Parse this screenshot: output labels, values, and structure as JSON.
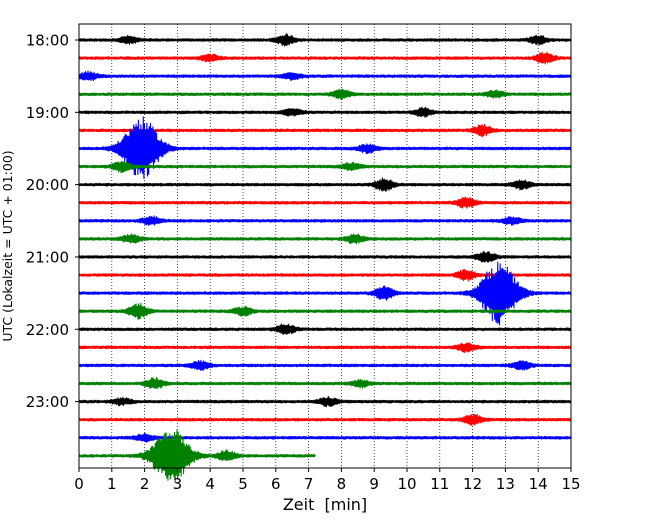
{
  "chart_data": {
    "type": "line",
    "subtype": "helicorder-seismogram",
    "xlabel": "Zeit  [min]",
    "ylabel": "UTC (Lokalzeit = UTC + 01:00)",
    "xlim": [
      0,
      15
    ],
    "x_ticks": [
      "0",
      "1",
      "2",
      "3",
      "4",
      "5",
      "6",
      "7",
      "8",
      "9",
      "10",
      "11",
      "12",
      "13",
      "14",
      "15"
    ],
    "y_tick_labels": [
      "18:00",
      "19:00",
      "20:00",
      "21:00",
      "22:00",
      "23:00"
    ],
    "minutes_per_line": 15,
    "grid": "vertical dotted at each minute",
    "trace_colors": [
      "#000000",
      "#ff0000",
      "#0000ff",
      "#008000"
    ],
    "trace_start_utc": "18:00",
    "last_trace_end_minute": 7.2,
    "traces": [
      {
        "utc": "18:00",
        "color": "#000000",
        "bursts": [
          {
            "x": 1.5,
            "amp": 0.4
          },
          {
            "x": 6.3,
            "amp": 0.6
          },
          {
            "x": 14.0,
            "amp": 0.5
          }
        ]
      },
      {
        "utc": "18:15",
        "color": "#ff0000",
        "bursts": [
          {
            "x": 4.0,
            "amp": 0.4
          },
          {
            "x": 14.2,
            "amp": 0.6
          }
        ]
      },
      {
        "utc": "18:30",
        "color": "#0000ff",
        "bursts": [
          {
            "x": 0.3,
            "amp": 0.5
          },
          {
            "x": 6.5,
            "amp": 0.4
          }
        ]
      },
      {
        "utc": "18:45",
        "color": "#008000",
        "bursts": [
          {
            "x": 8.0,
            "amp": 0.5
          },
          {
            "x": 12.7,
            "amp": 0.4
          }
        ]
      },
      {
        "utc": "19:00",
        "color": "#000000",
        "bursts": [
          {
            "x": 6.5,
            "amp": 0.4
          },
          {
            "x": 10.5,
            "amp": 0.5
          }
        ]
      },
      {
        "utc": "19:15",
        "color": "#ff0000",
        "bursts": [
          {
            "x": 12.3,
            "amp": 0.6
          }
        ]
      },
      {
        "utc": "19:30",
        "color": "#0000ff",
        "bursts": [
          {
            "x": 1.9,
            "amp": 3.8
          },
          {
            "x": 8.8,
            "amp": 0.5
          }
        ]
      },
      {
        "utc": "19:45",
        "color": "#008000",
        "bursts": [
          {
            "x": 1.3,
            "amp": 0.6
          },
          {
            "x": 8.3,
            "amp": 0.4
          }
        ]
      },
      {
        "utc": "20:00",
        "color": "#000000",
        "bursts": [
          {
            "x": 9.3,
            "amp": 0.7
          },
          {
            "x": 13.5,
            "amp": 0.5
          }
        ]
      },
      {
        "utc": "20:15",
        "color": "#ff0000",
        "bursts": [
          {
            "x": 11.8,
            "amp": 0.6
          }
        ]
      },
      {
        "utc": "20:30",
        "color": "#0000ff",
        "bursts": [
          {
            "x": 2.2,
            "amp": 0.5
          },
          {
            "x": 13.2,
            "amp": 0.4
          }
        ]
      },
      {
        "utc": "20:45",
        "color": "#008000",
        "bursts": [
          {
            "x": 1.6,
            "amp": 0.5
          },
          {
            "x": 8.4,
            "amp": 0.5
          }
        ]
      },
      {
        "utc": "21:00",
        "color": "#000000",
        "bursts": [
          {
            "x": 12.4,
            "amp": 0.6
          }
        ]
      },
      {
        "utc": "21:15",
        "color": "#ff0000",
        "bursts": [
          {
            "x": 11.8,
            "amp": 0.6
          }
        ]
      },
      {
        "utc": "21:30",
        "color": "#0000ff",
        "bursts": [
          {
            "x": 9.3,
            "amp": 0.8
          },
          {
            "x": 12.8,
            "amp": 3.8
          }
        ]
      },
      {
        "utc": "21:45",
        "color": "#008000",
        "bursts": [
          {
            "x": 1.8,
            "amp": 0.9
          },
          {
            "x": 5.0,
            "amp": 0.5
          }
        ]
      },
      {
        "utc": "22:00",
        "color": "#000000",
        "bursts": [
          {
            "x": 6.3,
            "amp": 0.6
          }
        ]
      },
      {
        "utc": "22:15",
        "color": "#ff0000",
        "bursts": [
          {
            "x": 11.8,
            "amp": 0.5
          }
        ]
      },
      {
        "utc": "22:30",
        "color": "#0000ff",
        "bursts": [
          {
            "x": 3.7,
            "amp": 0.5
          },
          {
            "x": 13.5,
            "amp": 0.5
          }
        ]
      },
      {
        "utc": "22:45",
        "color": "#008000",
        "bursts": [
          {
            "x": 2.3,
            "amp": 0.6
          },
          {
            "x": 8.6,
            "amp": 0.4
          }
        ]
      },
      {
        "utc": "23:00",
        "color": "#000000",
        "bursts": [
          {
            "x": 1.3,
            "amp": 0.4
          },
          {
            "x": 7.6,
            "amp": 0.5
          }
        ]
      },
      {
        "utc": "23:15",
        "color": "#ff0000",
        "bursts": [
          {
            "x": 12.0,
            "amp": 0.6
          }
        ]
      },
      {
        "utc": "23:30",
        "color": "#0000ff",
        "bursts": [
          {
            "x": 2.0,
            "amp": 0.4
          }
        ]
      },
      {
        "utc": "23:45",
        "color": "#008000",
        "bursts": [
          {
            "x": 2.8,
            "amp": 3.4
          },
          {
            "x": 4.5,
            "amp": 0.6
          }
        ]
      }
    ]
  }
}
